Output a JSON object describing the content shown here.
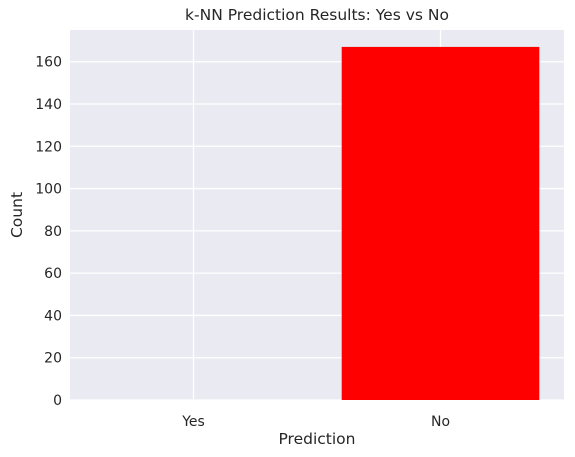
{
  "chart_data": {
    "type": "bar",
    "title": "k-NN Prediction Results: Yes vs No",
    "xlabel": "Prediction",
    "ylabel": "Count",
    "categories": [
      "Yes",
      "No"
    ],
    "values": [
      0,
      167
    ],
    "colors": [
      "#ff0000",
      "#ff0000"
    ],
    "ylim": [
      0,
      175
    ],
    "yticks": [
      0,
      20,
      40,
      60,
      80,
      100,
      120,
      140,
      160
    ],
    "grid": true,
    "background_color": "#eaeaf2",
    "grid_color": "#ffffff"
  }
}
